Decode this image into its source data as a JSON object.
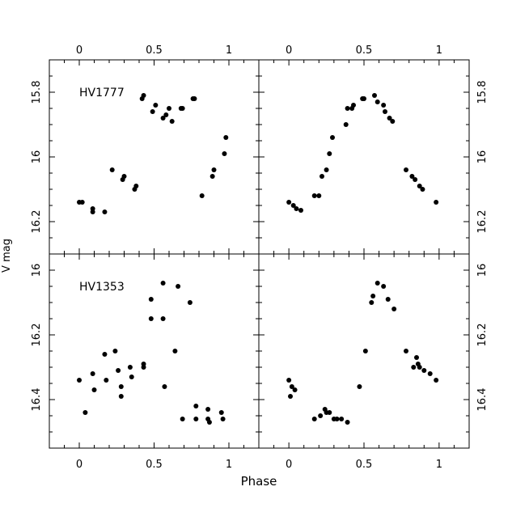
{
  "figure": {
    "xlabel": "Phase",
    "ylabel": "V mag"
  },
  "chart_data": [
    {
      "type": "scatter",
      "panel": "top-left",
      "label": "HV1777",
      "xlim": [
        -0.2,
        1.2
      ],
      "ylim": [
        16.3,
        15.7
      ],
      "y_inverted": true,
      "x_ticks": [
        "0",
        "0.5",
        "1"
      ],
      "x_tick_values": [
        0,
        0.5,
        1
      ],
      "y_ticks": [
        "15.8",
        "16",
        "16.2"
      ],
      "y_tick_values": [
        15.8,
        16.0,
        16.2
      ],
      "x": [
        0.0,
        0.02,
        0.09,
        0.09,
        0.17,
        0.22,
        0.29,
        0.3,
        0.37,
        0.38,
        0.42,
        0.43,
        0.49,
        0.51,
        0.56,
        0.58,
        0.6,
        0.62,
        0.68,
        0.69,
        0.76,
        0.77,
        0.82,
        0.89,
        0.9,
        0.97,
        0.98
      ],
      "y": [
        16.14,
        16.14,
        16.16,
        16.17,
        16.17,
        16.04,
        16.07,
        16.06,
        16.1,
        16.09,
        15.82,
        15.81,
        15.86,
        15.84,
        15.88,
        15.87,
        15.85,
        15.89,
        15.85,
        15.85,
        15.82,
        15.82,
        16.12,
        16.06,
        16.04,
        15.99,
        15.94
      ]
    },
    {
      "type": "scatter",
      "panel": "top-right",
      "label": "",
      "xlim": [
        -0.2,
        1.2
      ],
      "ylim": [
        16.3,
        15.7
      ],
      "y_inverted": true,
      "x_ticks": [
        "0",
        "0.5",
        "1"
      ],
      "x_tick_values": [
        0,
        0.5,
        1
      ],
      "y_ticks": [
        "15.8",
        "16",
        "16.2"
      ],
      "y_tick_values": [
        15.8,
        16.0,
        16.2
      ],
      "x": [
        0.0,
        0.03,
        0.05,
        0.08,
        0.17,
        0.2,
        0.22,
        0.25,
        0.27,
        0.29,
        0.38,
        0.39,
        0.42,
        0.43,
        0.49,
        0.5,
        0.57,
        0.59,
        0.63,
        0.64,
        0.67,
        0.69,
        0.78,
        0.82,
        0.84,
        0.87,
        0.89,
        0.98
      ],
      "y": [
        16.14,
        16.15,
        16.16,
        16.165,
        16.12,
        16.12,
        16.06,
        16.04,
        15.99,
        15.94,
        15.9,
        15.85,
        15.85,
        15.84,
        15.82,
        15.82,
        15.81,
        15.83,
        15.84,
        15.86,
        15.88,
        15.89,
        16.04,
        16.06,
        16.07,
        16.09,
        16.1,
        16.14
      ]
    },
    {
      "type": "scatter",
      "panel": "bottom-left",
      "label": "HV1353",
      "xlim": [
        -0.2,
        1.2
      ],
      "ylim": [
        16.55,
        15.95
      ],
      "y_inverted": true,
      "x_ticks": [
        "0",
        "0.5",
        "1"
      ],
      "x_tick_values": [
        0,
        0.5,
        1
      ],
      "y_ticks": [
        "16",
        "16.2",
        "16.4"
      ],
      "y_tick_values": [
        16.0,
        16.2,
        16.4
      ],
      "x": [
        0.0,
        0.04,
        0.09,
        0.1,
        0.17,
        0.18,
        0.24,
        0.26,
        0.28,
        0.28,
        0.34,
        0.35,
        0.43,
        0.43,
        0.48,
        0.48,
        0.56,
        0.56,
        0.57,
        0.64,
        0.66,
        0.69,
        0.74,
        0.78,
        0.78,
        0.86,
        0.86,
        0.87,
        0.95,
        0.96
      ],
      "y": [
        16.34,
        16.44,
        16.32,
        16.37,
        16.26,
        16.34,
        16.25,
        16.31,
        16.36,
        16.39,
        16.3,
        16.33,
        16.29,
        16.3,
        16.09,
        16.15,
        16.04,
        16.15,
        16.36,
        16.25,
        16.05,
        16.46,
        16.1,
        16.42,
        16.46,
        16.43,
        16.46,
        16.47,
        16.44,
        16.46
      ]
    },
    {
      "type": "scatter",
      "panel": "bottom-right",
      "label": "",
      "xlim": [
        -0.2,
        1.2
      ],
      "ylim": [
        16.55,
        15.95
      ],
      "y_inverted": true,
      "x_ticks": [
        "0",
        "0.5",
        "1"
      ],
      "x_tick_values": [
        0,
        0.5,
        1
      ],
      "y_ticks": [
        "16",
        "16.2",
        "16.4"
      ],
      "y_tick_values": [
        16.0,
        16.2,
        16.4
      ],
      "x": [
        0.0,
        0.01,
        0.02,
        0.04,
        0.17,
        0.21,
        0.24,
        0.25,
        0.27,
        0.3,
        0.32,
        0.35,
        0.39,
        0.47,
        0.51,
        0.55,
        0.56,
        0.59,
        0.63,
        0.66,
        0.7,
        0.78,
        0.83,
        0.85,
        0.86,
        0.87,
        0.9,
        0.94,
        0.98
      ],
      "y": [
        16.34,
        16.39,
        16.36,
        16.37,
        16.46,
        16.45,
        16.43,
        16.44,
        16.44,
        16.46,
        16.46,
        16.46,
        16.47,
        16.36,
        16.25,
        16.1,
        16.08,
        16.04,
        16.05,
        16.09,
        16.12,
        16.25,
        16.3,
        16.27,
        16.29,
        16.3,
        16.31,
        16.32,
        16.34
      ]
    }
  ]
}
